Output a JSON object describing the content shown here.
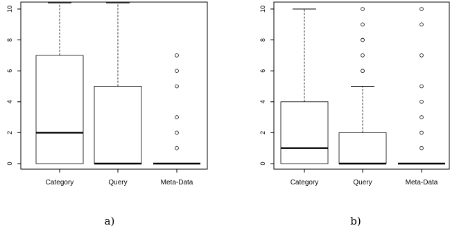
{
  "chart_data": [
    {
      "type": "boxplot",
      "caption": "a)",
      "categories": [
        "Category",
        "Query",
        "Meta-Data"
      ],
      "ylim": [
        0,
        10
      ],
      "yticks": [
        "0",
        "2",
        "4",
        "6",
        "8",
        "10"
      ],
      "series": [
        {
          "category": "Category",
          "min": 0,
          "q1": 0,
          "median": 2,
          "q3": 7,
          "max": 10.4,
          "outliers": []
        },
        {
          "category": "Query",
          "min": 0,
          "q1": 0,
          "median": 0,
          "q3": 5,
          "max": 10.4,
          "outliers": []
        },
        {
          "category": "Meta-Data",
          "min": 0,
          "q1": 0,
          "median": 0,
          "q3": 0,
          "max": 0,
          "outliers": [
            1,
            2,
            3,
            5,
            6,
            7
          ]
        }
      ]
    },
    {
      "type": "boxplot",
      "caption": "b)",
      "categories": [
        "Category",
        "Query",
        "Meta-Data"
      ],
      "ylim": [
        0,
        10
      ],
      "yticks": [
        "0",
        "2",
        "4",
        "6",
        "8",
        "10"
      ],
      "series": [
        {
          "category": "Category",
          "min": 0,
          "q1": 0,
          "median": 1,
          "q3": 4,
          "max": 10,
          "outliers": []
        },
        {
          "category": "Query",
          "min": 0,
          "q1": 0,
          "median": 0,
          "q3": 2,
          "max": 5,
          "outliers": [
            6,
            6,
            7,
            8,
            8,
            9,
            10
          ]
        },
        {
          "category": "Meta-Data",
          "min": 0,
          "q1": 0,
          "median": 0,
          "q3": 0,
          "max": 0,
          "outliers": [
            1,
            2,
            3,
            4,
            5,
            7,
            9,
            10
          ]
        }
      ]
    }
  ]
}
